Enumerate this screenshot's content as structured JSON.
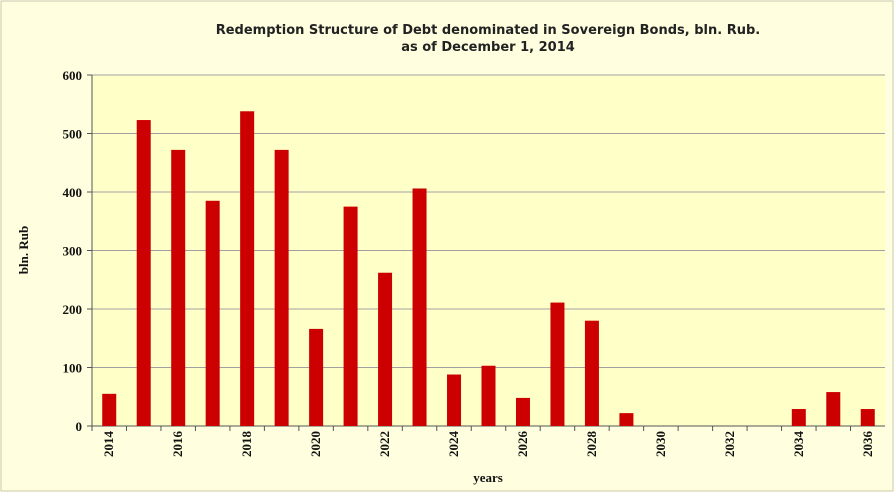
{
  "chart_data": {
    "type": "bar",
    "title": "Redemption Structure of Debt denominated in Sovereign Bonds, bln. Rub.",
    "subtitle": "as of  December 1, 2014",
    "x_label": "years",
    "y_label": "bln. Rub",
    "categories": [
      "2014",
      null,
      "2016",
      null,
      "2018",
      null,
      "2020",
      null,
      "2022",
      null,
      "2024",
      null,
      "2026",
      null,
      "2028",
      null,
      "2030",
      null,
      "2032",
      null,
      "2034",
      null,
      "2036"
    ],
    "values": [
      55,
      523,
      472,
      385,
      538,
      472,
      166,
      375,
      262,
      406,
      88,
      103,
      48,
      211,
      180,
      22,
      0,
      0,
      0,
      0,
      29,
      58,
      29
    ],
    "color": "#cc0000",
    "ylim": [
      0,
      600
    ],
    "yticks": [
      0,
      100,
      200,
      300,
      400,
      500,
      600
    ],
    "grid": true
  }
}
